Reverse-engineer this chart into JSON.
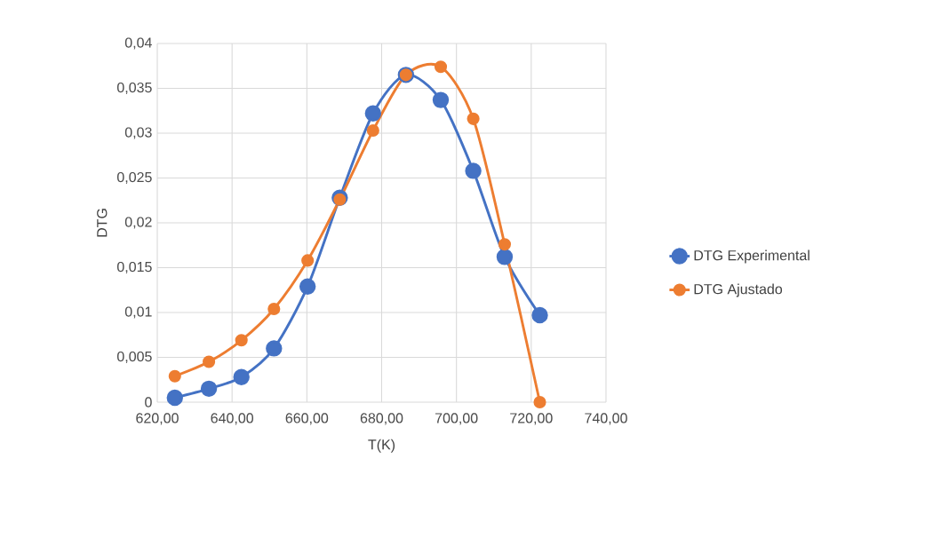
{
  "chart_data": {
    "type": "line",
    "xlabel": "T(K)",
    "ylabel": "DTG",
    "x": [
      624.7,
      633.8,
      642.5,
      651.2,
      660.2,
      668.8,
      677.7,
      686.5,
      695.8,
      704.5,
      712.9,
      722.3
    ],
    "series": [
      {
        "name": "DTG Experimental",
        "color": "#4472c4",
        "values": [
          0.0005,
          0.0015,
          0.0028,
          0.006,
          0.0129,
          0.0228,
          0.0322,
          0.0365,
          0.0337,
          0.0258,
          0.0162,
          0.0097
        ]
      },
      {
        "name": "DTG Ajustado",
        "color": "#ed7d31",
        "values": [
          0.0029,
          0.0045,
          0.0069,
          0.0104,
          0.0158,
          0.0226,
          0.0303,
          0.0365,
          0.0374,
          0.0316,
          0.0176,
          0.0
        ]
      }
    ],
    "xlim": [
      620,
      740
    ],
    "ylim": [
      0,
      0.04
    ],
    "xticks": [
      {
        "value": 620,
        "label": "620,00"
      },
      {
        "value": 640,
        "label": "640,00"
      },
      {
        "value": 660,
        "label": "660,00"
      },
      {
        "value": 680,
        "label": "680,00"
      },
      {
        "value": 700,
        "label": "700,00"
      },
      {
        "value": 720,
        "label": "720,00"
      },
      {
        "value": 740,
        "label": "740,00"
      }
    ],
    "yticks": [
      0,
      {
        "value": 0.005,
        "label": "0,005"
      },
      {
        "value": 0.01,
        "label": "0,01"
      },
      {
        "value": 0.015,
        "label": "0,015"
      },
      {
        "value": 0.02,
        "label": "0,02"
      },
      {
        "value": 0.025,
        "label": "0,025"
      },
      {
        "value": 0.03,
        "label": "0,03"
      },
      {
        "value": 0.035,
        "label": "0,035"
      },
      {
        "value": 0.04,
        "label": "0,04"
      }
    ],
    "grid": true,
    "legend": "right",
    "marker": "circle"
  }
}
